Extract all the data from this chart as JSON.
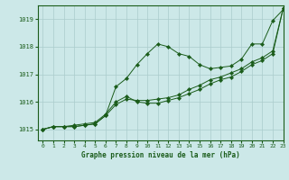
{
  "title": "Graphe pression niveau de la mer (hPa)",
  "bg_color": "#cce8e8",
  "grid_color": "#aacccc",
  "line_color": "#1a5c1a",
  "marker_color": "#1a5c1a",
  "xlim": [
    -0.5,
    23
  ],
  "ylim": [
    1014.6,
    1019.5
  ],
  "yticks": [
    1015,
    1016,
    1017,
    1018,
    1019
  ],
  "xticks": [
    0,
    1,
    2,
    3,
    4,
    5,
    6,
    7,
    8,
    9,
    10,
    11,
    12,
    13,
    14,
    15,
    16,
    17,
    18,
    19,
    20,
    21,
    22,
    23
  ],
  "series": [
    [
      1015.0,
      1015.1,
      1015.1,
      1015.1,
      1015.15,
      1015.2,
      1015.5,
      1016.55,
      1016.85,
      1017.35,
      1017.75,
      1018.1,
      1018.0,
      1017.75,
      1017.65,
      1017.35,
      1017.2,
      1017.25,
      1017.3,
      1017.55,
      1018.1,
      1018.1,
      1018.95,
      1019.35
    ],
    [
      1015.0,
      1015.1,
      1015.1,
      1015.1,
      1015.15,
      1015.2,
      1015.5,
      1015.9,
      1016.1,
      1016.05,
      1016.05,
      1016.1,
      1016.15,
      1016.25,
      1016.45,
      1016.6,
      1016.8,
      1016.9,
      1017.05,
      1017.2,
      1017.45,
      1017.6,
      1017.85,
      1019.4
    ],
    [
      1015.0,
      1015.1,
      1015.1,
      1015.15,
      1015.2,
      1015.25,
      1015.55,
      1016.0,
      1016.2,
      1016.0,
      1015.95,
      1015.95,
      1016.05,
      1016.15,
      1016.3,
      1016.45,
      1016.65,
      1016.8,
      1016.9,
      1017.1,
      1017.35,
      1017.5,
      1017.75,
      1019.4
    ]
  ]
}
